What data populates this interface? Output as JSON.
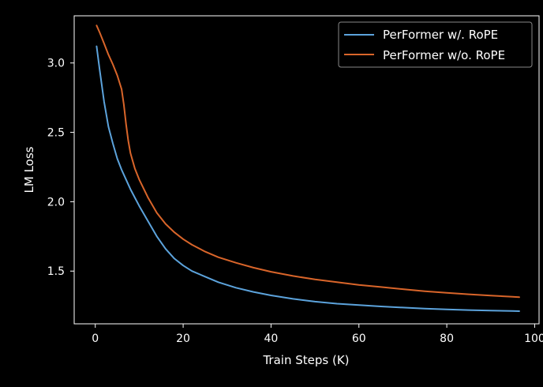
{
  "chart_data": {
    "type": "line",
    "title": "",
    "xlabel": "Train Steps (K)",
    "ylabel": "LM Loss",
    "xlim": [
      -4.8,
      101
    ],
    "ylim": [
      1.12,
      3.34
    ],
    "xticks": [
      0,
      20,
      40,
      60,
      80,
      100
    ],
    "xtick_labels": [
      "0",
      "20",
      "40",
      "60",
      "80",
      "100"
    ],
    "yticks": [
      1.5,
      2.0,
      2.5,
      3.0
    ],
    "ytick_labels": [
      "1.5",
      "2.0",
      "2.5",
      "3.0"
    ],
    "grid": false,
    "legend_position": "top-right",
    "background": "#000000",
    "foreground": "#ffffff",
    "series": [
      {
        "name": "PerFormer w/. RoPE",
        "color": "#5ca3dc",
        "x": [
          0.3,
          1,
          2,
          3,
          4,
          5,
          6,
          7,
          8,
          9,
          10,
          12,
          14,
          16,
          18,
          20,
          22,
          25,
          28,
          32,
          36,
          40,
          45,
          50,
          55,
          60,
          65,
          70,
          75,
          80,
          85,
          90,
          95,
          96.5
        ],
        "y": [
          3.12,
          2.95,
          2.72,
          2.54,
          2.42,
          2.31,
          2.23,
          2.16,
          2.09,
          2.03,
          1.97,
          1.86,
          1.75,
          1.66,
          1.59,
          1.54,
          1.5,
          1.46,
          1.42,
          1.38,
          1.35,
          1.325,
          1.3,
          1.28,
          1.265,
          1.255,
          1.245,
          1.237,
          1.23,
          1.224,
          1.219,
          1.215,
          1.212,
          1.211
        ]
      },
      {
        "name": "PerFormer w/o. RoPE",
        "color": "#d9652a",
        "x": [
          0.3,
          1,
          2,
          3,
          4,
          5,
          6,
          6.5,
          7,
          7.5,
          8,
          9,
          10,
          12,
          14,
          16,
          18,
          20,
          22,
          25,
          28,
          32,
          36,
          40,
          45,
          50,
          55,
          60,
          65,
          70,
          75,
          80,
          85,
          90,
          95,
          96.5
        ],
        "y": [
          3.27,
          3.22,
          3.14,
          3.06,
          2.99,
          2.91,
          2.81,
          2.7,
          2.56,
          2.44,
          2.35,
          2.24,
          2.16,
          2.03,
          1.92,
          1.84,
          1.78,
          1.73,
          1.69,
          1.64,
          1.6,
          1.56,
          1.525,
          1.495,
          1.465,
          1.44,
          1.42,
          1.4,
          1.385,
          1.37,
          1.355,
          1.343,
          1.333,
          1.323,
          1.315,
          1.312
        ]
      }
    ]
  }
}
